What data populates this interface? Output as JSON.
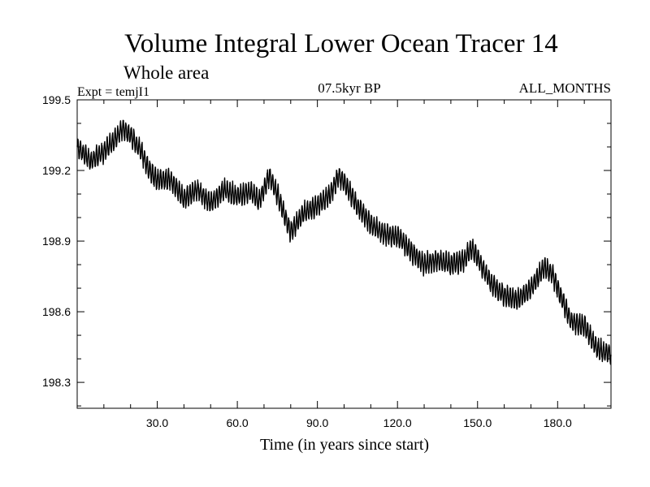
{
  "chart_data": {
    "type": "line",
    "title": "Volume Integral Lower Ocean Tracer 14",
    "subtitle": "Whole area",
    "experiment_label": "Expt = temjI1",
    "period_label": "07.5kyr BP",
    "months_label": "ALL_MONTHS",
    "xlabel": "Time (in years since start)",
    "ylabel": "",
    "xlim": [
      0,
      200
    ],
    "ylim": [
      198.19,
      199.5
    ],
    "grid": false,
    "x_ticks": [
      {
        "value": 30,
        "label": "30.0"
      },
      {
        "value": 60,
        "label": "60.0"
      },
      {
        "value": 90,
        "label": "90.0"
      },
      {
        "value": 120,
        "label": "120.0"
      },
      {
        "value": 150,
        "label": "150.0"
      },
      {
        "value": 180,
        "label": "180.0"
      }
    ],
    "y_ticks": [
      {
        "value": 199.5,
        "label": "199.5"
      },
      {
        "value": 199.2,
        "label": "199.2"
      },
      {
        "value": 198.9,
        "label": "198.9"
      },
      {
        "value": 198.6,
        "label": "198.6"
      },
      {
        "value": 198.3,
        "label": "198.3"
      }
    ],
    "seasonal_amplitude": 0.04,
    "series": [
      {
        "name": "Volume Integral Lower Ocean Tracer 14",
        "x": [
          0,
          5,
          10,
          14,
          17,
          20,
          24,
          27,
          30,
          35,
          40,
          45,
          50,
          55,
          60,
          65,
          68,
          70,
          72,
          75,
          78,
          80,
          85,
          90,
          95,
          98,
          100,
          105,
          110,
          115,
          120,
          125,
          130,
          135,
          140,
          145,
          148,
          150,
          155,
          160,
          165,
          170,
          175,
          178,
          180,
          185,
          190,
          195,
          200
        ],
        "y": [
          199.3,
          199.24,
          199.28,
          199.33,
          199.38,
          199.35,
          199.28,
          199.2,
          199.16,
          199.16,
          199.08,
          199.12,
          199.06,
          199.12,
          199.09,
          199.11,
          199.07,
          199.12,
          199.18,
          199.1,
          199.0,
          198.94,
          199.02,
          199.05,
          199.1,
          199.18,
          199.15,
          199.05,
          198.97,
          198.93,
          198.92,
          198.86,
          198.8,
          198.82,
          198.8,
          198.82,
          198.87,
          198.83,
          198.72,
          198.67,
          198.65,
          198.7,
          198.79,
          198.76,
          198.7,
          198.56,
          198.54,
          198.44,
          198.42
        ]
      }
    ]
  }
}
